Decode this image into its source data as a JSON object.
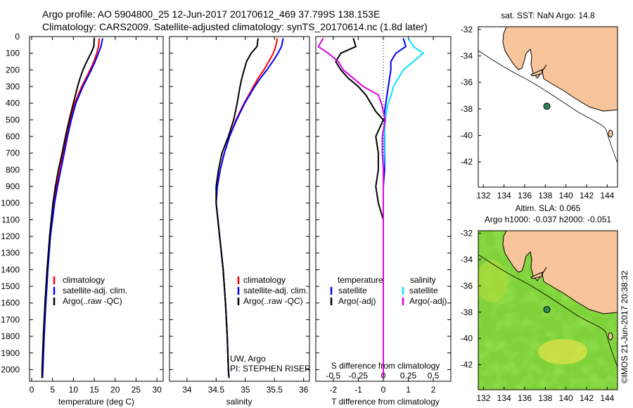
{
  "header": {
    "line1": "Argo profile: AO 5904800_25 12-Jun-2017 20170612_469 37.799S 138.153E",
    "line2": "Climatology: CARS2009. Satellite-adjusted climatology: synTS_20170614.nc (1.8d later)"
  },
  "colors": {
    "climatology": "#ff0000",
    "satellite": "#0000ff",
    "argo": "#000000",
    "sal_satellite": "#00e5ff",
    "sal_argo": "#e000e0",
    "land": "#f8c59a",
    "marker": "#2e8b57"
  },
  "chart_data": [
    {
      "type": "line",
      "name": "temperature-profile",
      "xlabel": "temperature (deg C)",
      "ylabel": "",
      "xlim": [
        -0.5,
        31.5
      ],
      "ylim": [
        2070,
        0
      ],
      "xticks": [
        "0",
        "5",
        "10",
        "15",
        "20",
        "25",
        "30"
      ],
      "yticks": [
        "0",
        "100",
        "200",
        "300",
        "400",
        "500",
        "600",
        "700",
        "800",
        "900",
        "1000",
        "1100",
        "1200",
        "1300",
        "1400",
        "1500",
        "1600",
        "1700",
        "1800",
        "1900",
        "2000"
      ],
      "depth": [
        10,
        60,
        100,
        150,
        200,
        250,
        300,
        400,
        500,
        600,
        700,
        800,
        900,
        1000,
        1200,
        1400,
        1600,
        1800,
        2000,
        2050
      ],
      "series": [
        {
          "name": "climatology",
          "values": [
            16.2,
            16.0,
            15.6,
            14.9,
            14.0,
            13.0,
            12.0,
            10.3,
            9.2,
            8.4,
            7.6,
            6.8,
            6.0,
            5.3,
            4.4,
            3.8,
            3.3,
            2.9,
            2.6,
            2.5
          ]
        },
        {
          "name": "satellite-adj. clim.",
          "values": [
            17.0,
            16.6,
            16.0,
            15.2,
            14.3,
            13.3,
            12.3,
            10.6,
            9.5,
            8.6,
            7.8,
            7.0,
            6.2,
            5.5,
            4.5,
            3.9,
            3.4,
            3.0,
            2.7,
            2.6
          ]
        },
        {
          "name": "Argo(..raw -QC)",
          "values": [
            15.0,
            14.9,
            14.2,
            13.2,
            12.3,
            11.6,
            11.0,
            10.0,
            9.0,
            8.1,
            7.3,
            6.4,
            5.7,
            5.1,
            4.3,
            3.7,
            3.2,
            2.8,
            2.5,
            2.5
          ]
        }
      ],
      "legend": [
        "climatology",
        "satellite-adj. clim.",
        "Argo(..raw -QC)"
      ]
    },
    {
      "type": "line",
      "name": "salinity-profile",
      "xlabel": "salinity",
      "xlim": [
        33.7,
        36.1
      ],
      "ylim": [
        2070,
        0
      ],
      "xticks": [
        "34",
        "34.5",
        "35",
        "35.5",
        "36"
      ],
      "depth": [
        10,
        60,
        100,
        150,
        200,
        250,
        300,
        400,
        500,
        600,
        700,
        800,
        900,
        1000,
        1200,
        1400,
        1600,
        1800,
        2000,
        2050
      ],
      "series": [
        {
          "name": "climatology",
          "values": [
            35.55,
            35.52,
            35.48,
            35.4,
            35.32,
            35.22,
            35.14,
            34.98,
            34.84,
            34.73,
            34.64,
            34.57,
            34.52,
            34.5,
            34.56,
            34.62,
            34.66,
            34.69,
            34.71,
            34.72
          ]
        },
        {
          "name": "satellite-adj. clim.",
          "values": [
            35.65,
            35.62,
            35.56,
            35.47,
            35.37,
            35.26,
            35.16,
            34.99,
            34.85,
            34.73,
            34.64,
            34.57,
            34.52,
            34.5,
            34.56,
            34.62,
            34.66,
            34.69,
            34.71,
            34.72
          ]
        },
        {
          "name": "Argo(..raw -QC)",
          "values": [
            35.22,
            35.2,
            35.1,
            35.02,
            34.98,
            34.94,
            34.91,
            34.86,
            34.8,
            34.71,
            34.6,
            34.54,
            34.5,
            34.5,
            34.56,
            34.62,
            34.66,
            34.69,
            34.71,
            34.72
          ]
        }
      ],
      "legend": [
        "climatology",
        "satellite-adj. clim.",
        "Argo(..raw -QC)"
      ],
      "annotation": [
        "UW, Argo",
        "PI: STEPHEN RISER"
      ]
    },
    {
      "type": "line",
      "name": "difference-profile",
      "xlabel": "T difference from climatology",
      "top_label": "S difference from climatology",
      "xlim": [
        -2.7,
        2.7
      ],
      "ylim": [
        2070,
        0
      ],
      "xticks": [
        "-2",
        "-1",
        "0",
        "1",
        "2"
      ],
      "top_ticks": [
        "-0.5",
        "-0.25",
        "0",
        "0.25",
        "0.5"
      ],
      "depth": [
        10,
        60,
        100,
        150,
        200,
        250,
        300,
        350,
        400,
        450,
        500,
        600,
        700,
        800,
        900,
        1000,
        1100,
        1200,
        1500,
        2050
      ],
      "series": [
        {
          "name": "temperature satellite",
          "values": [
            0.8,
            0.9,
            0.5,
            0.3,
            0.3,
            0.25,
            0.2,
            0.15,
            0.1,
            0.05,
            0.05,
            0.05,
            0.05,
            0.05,
            0.0,
            0.0,
            0.0,
            0.0,
            0.0,
            0.0
          ]
        },
        {
          "name": "temperature Argo(-adj)",
          "values": [
            -1.2,
            -1.1,
            -1.7,
            -1.9,
            -1.7,
            -1.4,
            -1.0,
            -0.7,
            -0.5,
            -0.3,
            0.0,
            -0.3,
            -0.2,
            -0.2,
            -0.3,
            -0.2,
            0.0,
            0.0,
            0.0,
            0.0
          ]
        },
        {
          "name": "salinity satellite",
          "values": [
            0.25,
            0.3,
            0.4,
            0.3,
            0.2,
            0.15,
            0.1,
            0.08,
            0.05,
            0.03,
            0.02,
            0.01,
            0.01,
            0.0,
            0.0,
            0.0,
            0.0,
            0.0,
            0.0,
            0.0
          ]
        },
        {
          "name": "salinity Argo(-adj)",
          "values": [
            -0.6,
            -0.65,
            -0.55,
            -0.45,
            -0.4,
            -0.3,
            -0.2,
            -0.05,
            -0.02,
            0.0,
            0.02,
            -0.01,
            -0.01,
            0.0,
            0.0,
            0.0,
            0.0,
            0.0,
            0.0,
            0.0
          ]
        }
      ],
      "legend_headers": [
        "temperature",
        "salinity"
      ],
      "legend_left": [
        "satellite",
        "Argo(-adj)"
      ],
      "legend_right": [
        "satellite",
        "Argo(-adj)"
      ]
    }
  ],
  "maps": {
    "sst_title": "sat. SST: NaN Argo: 14.8",
    "sla_title1": "Altim. SLA: 0.065",
    "sla_title2": "Argo h1000: -0.037 h2000: -0.051",
    "xticks": [
      "132",
      "134",
      "136",
      "138",
      "140",
      "142",
      "144"
    ],
    "yticks": [
      "-32",
      "-34",
      "-36",
      "-38",
      "-40",
      "-42"
    ],
    "argo_lon": 138.15,
    "argo_lat": -37.8,
    "lon_range": [
      131.5,
      145
    ],
    "lat_range": [
      -43.9,
      -31.8
    ]
  },
  "credit": "©IMOS 21-Jun-2017 20:38:32"
}
